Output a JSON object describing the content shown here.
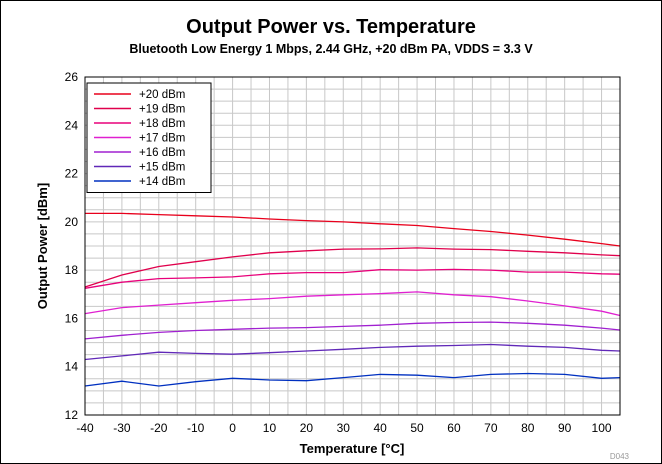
{
  "chart_data": {
    "type": "line",
    "title": "Output Power vs. Temperature",
    "subtitle": "Bluetooth Low Energy 1 Mbps, 2.44 GHz, +20 dBm PA, VDDS = 3.3 V",
    "xlabel": "Temperature [°C]",
    "ylabel": "Output Power [dBm]",
    "figure_code": "D043",
    "xlim": [
      -40,
      105
    ],
    "ylim": [
      12,
      26
    ],
    "x_ticks": [
      -40,
      -30,
      -20,
      -10,
      0,
      10,
      20,
      30,
      40,
      50,
      60,
      70,
      80,
      90,
      100
    ],
    "y_ticks": [
      12,
      14,
      16,
      18,
      20,
      22,
      24,
      26
    ],
    "grid": true,
    "legend_position": "top-left",
    "x": [
      -40,
      -30,
      -20,
      -10,
      0,
      10,
      20,
      30,
      40,
      50,
      60,
      70,
      80,
      90,
      100,
      105
    ],
    "series": [
      {
        "name": "+20 dBm",
        "color": "#e8001c",
        "values": [
          20.35,
          20.35,
          20.3,
          20.25,
          20.2,
          20.12,
          20.05,
          20.0,
          19.92,
          19.85,
          19.72,
          19.6,
          19.45,
          19.28,
          19.1,
          19.0
        ]
      },
      {
        "name": "+19 dBm",
        "color": "#e0004c",
        "values": [
          17.3,
          17.8,
          18.15,
          18.35,
          18.55,
          18.72,
          18.8,
          18.87,
          18.88,
          18.92,
          18.87,
          18.85,
          18.78,
          18.72,
          18.63,
          18.6
        ]
      },
      {
        "name": "+18 dBm",
        "color": "#e8007a",
        "values": [
          17.25,
          17.5,
          17.65,
          17.68,
          17.72,
          17.85,
          17.9,
          17.9,
          18.02,
          18.0,
          18.03,
          18.0,
          17.92,
          17.92,
          17.85,
          17.83
        ]
      },
      {
        "name": "+17 dBm",
        "color": "#e020d0",
        "values": [
          16.2,
          16.45,
          16.55,
          16.65,
          16.75,
          16.82,
          16.92,
          16.98,
          17.03,
          17.1,
          16.98,
          16.9,
          16.72,
          16.52,
          16.3,
          16.12
        ]
      },
      {
        "name": "+16 dBm",
        "color": "#a020d0",
        "values": [
          15.15,
          15.3,
          15.42,
          15.5,
          15.55,
          15.6,
          15.62,
          15.67,
          15.72,
          15.8,
          15.83,
          15.85,
          15.8,
          15.72,
          15.6,
          15.52
        ]
      },
      {
        "name": "+15 dBm",
        "color": "#6028b8",
        "values": [
          14.3,
          14.45,
          14.6,
          14.55,
          14.52,
          14.58,
          14.65,
          14.72,
          14.8,
          14.85,
          14.88,
          14.92,
          14.85,
          14.8,
          14.68,
          14.65
        ]
      },
      {
        "name": "+14 dBm",
        "color": "#0030c0",
        "values": [
          13.2,
          13.4,
          13.2,
          13.38,
          13.52,
          13.45,
          13.42,
          13.55,
          13.68,
          13.65,
          13.55,
          13.68,
          13.72,
          13.68,
          13.52,
          13.55
        ]
      }
    ]
  }
}
